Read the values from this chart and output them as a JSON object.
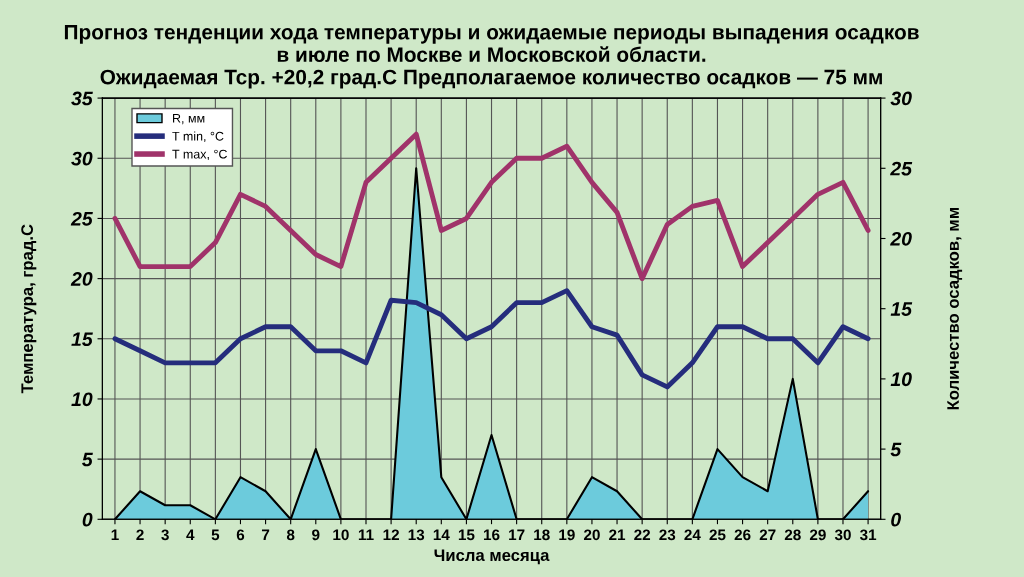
{
  "chart_data": {
    "type": "line",
    "title": "Прогноз тенденции хода температуры и ожидаемые периоды выпадения осадков\nв июле по Москве и Московской области.\nОжидаемая Тср. +20,2 град.С Предполагаемое количество осадков — 75 мм",
    "xlabel": "Числа месяца",
    "ylabel": "Температура, град.С",
    "y2label": "Количество осадков, мм",
    "categories": [
      "1",
      "2",
      "3",
      "4",
      "5",
      "6",
      "7",
      "8",
      "9",
      "10",
      "11",
      "12",
      "13",
      "14",
      "15",
      "16",
      "17",
      "18",
      "19",
      "20",
      "21",
      "22",
      "23",
      "24",
      "25",
      "26",
      "27",
      "28",
      "29",
      "30",
      "31"
    ],
    "series": [
      {
        "name": "R, мм",
        "type": "area",
        "axis": "y2",
        "color": "#6ccbdc",
        "values": [
          0,
          2,
          1,
          1,
          0,
          3,
          2,
          0,
          5,
          0,
          0,
          0,
          25,
          3,
          0,
          6,
          0,
          0,
          0,
          3,
          2,
          0,
          0,
          0,
          5,
          3,
          2,
          10,
          0,
          0,
          2
        ]
      },
      {
        "name": "T min, °C",
        "color": "#252d7c",
        "values": [
          15,
          14,
          13,
          13,
          13,
          15,
          16,
          16,
          14,
          14,
          13,
          18.2,
          18,
          17,
          15,
          16,
          18,
          18,
          19,
          16,
          15.3,
          12,
          11,
          13,
          16,
          16,
          15,
          15,
          13,
          16,
          15
        ]
      },
      {
        "name": "T max, °C",
        "color": "#a0336a",
        "values": [
          25,
          21,
          21,
          21,
          23,
          27,
          26,
          24,
          22,
          21,
          28,
          30,
          32,
          24,
          25,
          28,
          30,
          30,
          31,
          28,
          25.5,
          20,
          24.5,
          26,
          26.5,
          21,
          23,
          25,
          27,
          28,
          24
        ]
      }
    ],
    "ylim": [
      0,
      35
    ],
    "yticks": [
      0,
      5,
      10,
      15,
      20,
      25,
      30,
      35
    ],
    "y2lim": [
      0,
      30
    ],
    "y2ticks": [
      0,
      5,
      10,
      15,
      20,
      25,
      30
    ],
    "grid": true,
    "legend": "top left",
    "line_style": "solid"
  }
}
